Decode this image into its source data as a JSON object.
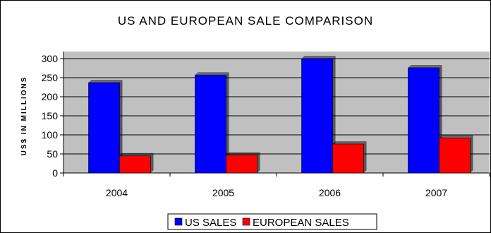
{
  "chart_data": {
    "type": "bar",
    "title": "US AND EUROPEAN SALE COMPARISON",
    "xlabel": "",
    "ylabel": "US$ IN MILLIONS",
    "categories": [
      "2004",
      "2005",
      "2006",
      "2007"
    ],
    "series": [
      {
        "name": "US SALES",
        "values": [
          237,
          257,
          300,
          276
        ],
        "color": "#0000ff"
      },
      {
        "name": "EUROPEAN SALES",
        "values": [
          45,
          47,
          76,
          92
        ],
        "color": "#ff0000"
      }
    ],
    "ylim": [
      0,
      300
    ],
    "yticks": [
      0,
      50,
      100,
      150,
      200,
      250,
      300
    ],
    "grid": true,
    "plot_background": "#c0c0c0",
    "legend_position": "bottom"
  }
}
